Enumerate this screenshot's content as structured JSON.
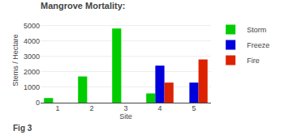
{
  "chart_data": {
    "type": "bar",
    "title": "Mangrove Mortality:",
    "xlabel": "Site",
    "ylabel": "Stems / Hectare",
    "annotations": [
      "Fig 3"
    ],
    "categories": [
      "1",
      "2",
      "3",
      "4",
      "5"
    ],
    "series": [
      {
        "name": "Storm",
        "color": "#00CC00",
        "values": [
          300,
          1700,
          4800,
          600,
          0
        ]
      },
      {
        "name": "Freeze",
        "color": "#0000DD",
        "values": [
          0,
          0,
          0,
          2400,
          1300
        ]
      },
      {
        "name": "Fire",
        "color": "#DD2200",
        "values": [
          0,
          0,
          0,
          1300,
          2800
        ]
      }
    ],
    "ylim": [
      0,
      5500
    ],
    "yticks": [
      0,
      1000,
      2000,
      3000,
      4000,
      5000
    ],
    "grid": true,
    "legend": "upper right"
  }
}
